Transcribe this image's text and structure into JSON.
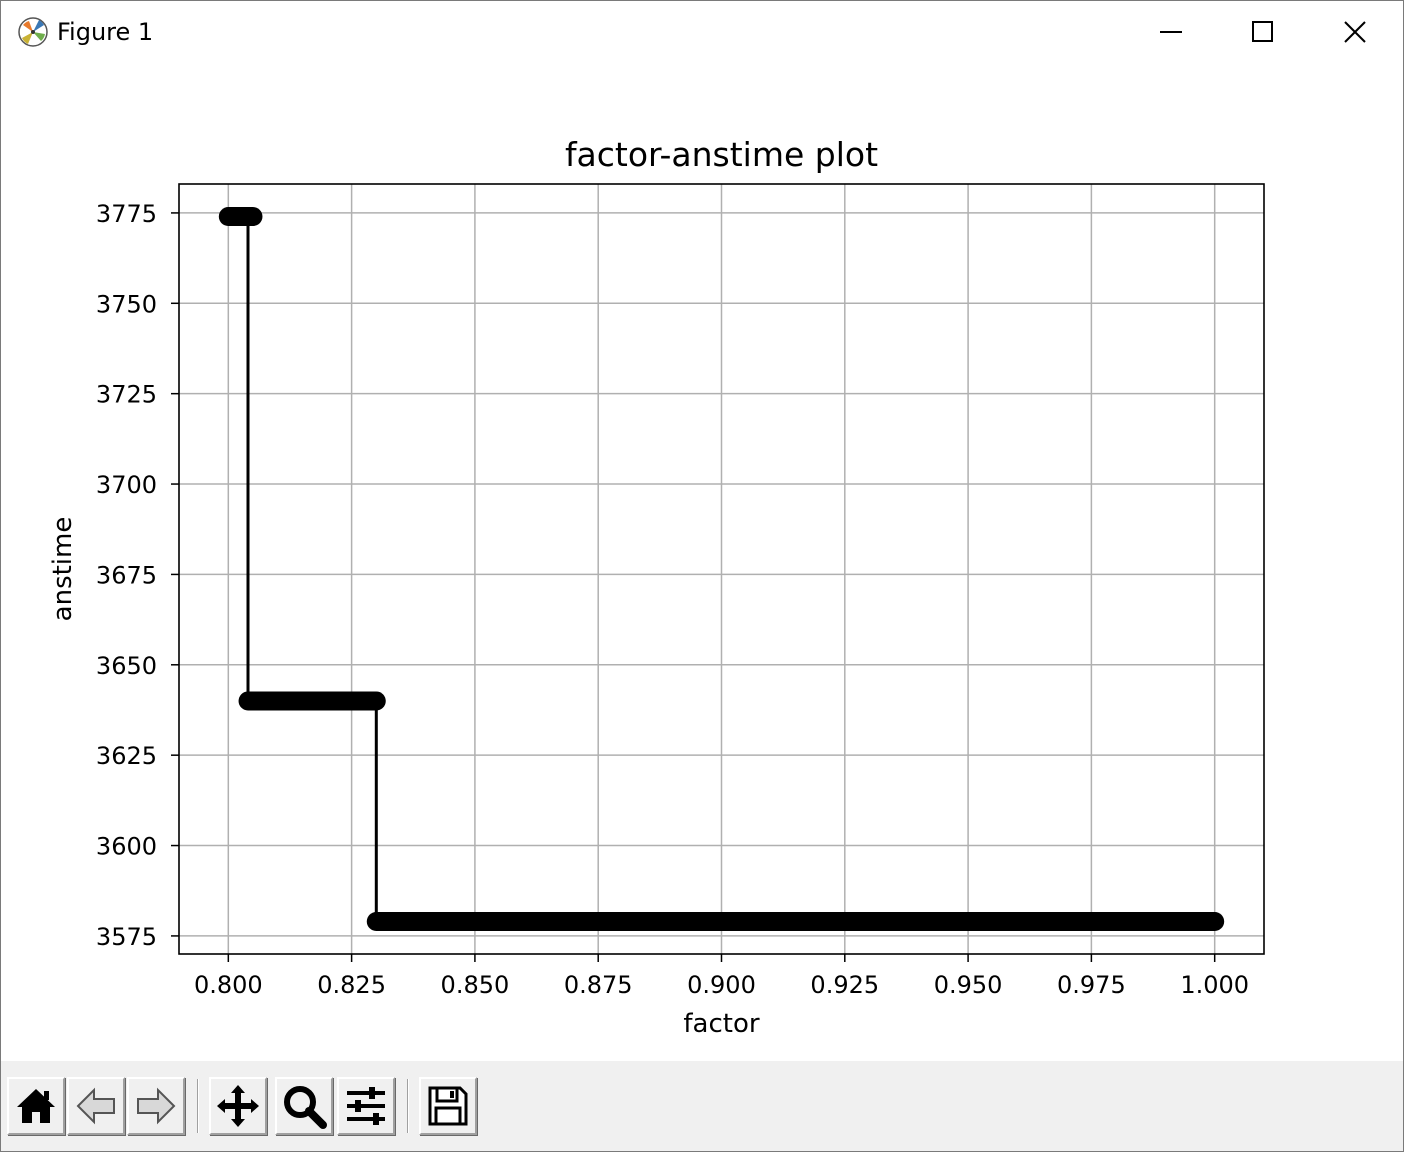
{
  "window": {
    "title": "Figure 1",
    "icon": "matplotlib-logo-icon"
  },
  "window_controls": [
    "minimize-icon",
    "maximize-icon",
    "close-icon"
  ],
  "toolbar": {
    "buttons": [
      {
        "name": "home",
        "icon": "home-icon"
      },
      {
        "name": "back",
        "icon": "back-arrow-icon"
      },
      {
        "name": "forward",
        "icon": "forward-arrow-icon"
      },
      {
        "name": "pan",
        "icon": "pan-icon"
      },
      {
        "name": "zoom",
        "icon": "zoom-icon"
      },
      {
        "name": "configure-subplots",
        "icon": "sliders-icon"
      },
      {
        "name": "save",
        "icon": "save-icon"
      }
    ]
  },
  "chart_data": {
    "type": "line",
    "title": "factor-anstime plot",
    "xlabel": "factor",
    "ylabel": "anstime",
    "xlim": [
      0.79,
      1.01
    ],
    "ylim": [
      3570,
      3783
    ],
    "xticks": [
      0.8,
      0.825,
      0.85,
      0.875,
      0.9,
      0.925,
      0.95,
      0.975,
      1.0
    ],
    "xtick_labels": [
      "0.800",
      "0.825",
      "0.850",
      "0.875",
      "0.900",
      "0.925",
      "0.950",
      "0.975",
      "1.000"
    ],
    "yticks": [
      3575,
      3600,
      3625,
      3650,
      3675,
      3700,
      3725,
      3750,
      3775
    ],
    "ytick_labels": [
      "3575",
      "3600",
      "3625",
      "3650",
      "3675",
      "3700",
      "3725",
      "3750",
      "3775"
    ],
    "grid": true,
    "marker": "o",
    "color": "#000000",
    "series": [
      {
        "segments": [
          {
            "x_start": 0.8,
            "x_end": 0.805,
            "y": 3774
          },
          {
            "x_start": 0.804,
            "x_end": 0.83,
            "y": 3640
          },
          {
            "x_start": 0.83,
            "x_end": 1.0,
            "y": 3579
          }
        ]
      }
    ]
  }
}
